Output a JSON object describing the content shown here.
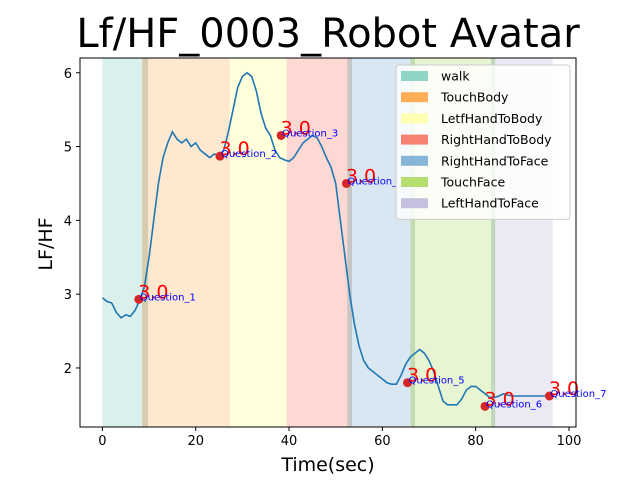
{
  "chart_data": {
    "type": "line",
    "title": "Lf/HF_0003_Robot Avatar",
    "xlabel": "Time(sec)",
    "ylabel": "LF/HF",
    "xlim": [
      -4.8,
      101.5
    ],
    "ylim": [
      1.2,
      6.2
    ],
    "xticks": [
      0,
      20,
      40,
      60,
      80,
      100
    ],
    "yticks": [
      2,
      3,
      4,
      5,
      6
    ],
    "line_color": "#1f77b4",
    "series": [
      {
        "x": [
          0,
          1,
          2,
          3,
          4,
          5,
          6,
          7,
          8,
          9,
          10,
          11,
          12,
          13,
          14,
          15,
          16,
          17,
          18,
          19,
          20,
          21,
          22,
          23,
          24,
          25,
          26,
          27,
          28,
          29,
          30,
          31,
          32,
          33,
          34,
          35,
          36,
          37,
          38,
          39,
          40,
          41,
          42,
          43,
          44,
          45,
          46,
          47,
          48,
          49,
          50,
          51,
          52,
          53,
          54,
          55,
          56,
          57,
          58,
          59,
          60,
          61,
          62,
          63,
          64,
          65,
          66,
          67,
          68,
          69,
          70,
          71,
          72,
          73,
          74,
          75,
          76,
          77,
          78,
          79,
          80,
          81,
          82,
          83,
          84,
          85,
          86,
          87,
          88,
          89,
          90,
          91,
          92,
          93,
          94,
          95,
          96
        ],
        "y": [
          2.95,
          2.9,
          2.88,
          2.75,
          2.68,
          2.72,
          2.7,
          2.78,
          2.92,
          3.1,
          3.5,
          4.0,
          4.5,
          4.85,
          5.05,
          5.2,
          5.1,
          5.05,
          5.1,
          5.0,
          5.05,
          4.95,
          4.9,
          4.85,
          4.9,
          4.87,
          4.95,
          5.2,
          5.5,
          5.8,
          5.95,
          6.0,
          5.95,
          5.75,
          5.45,
          5.25,
          5.15,
          4.95,
          4.85,
          4.82,
          4.8,
          4.85,
          4.95,
          5.05,
          5.1,
          5.15,
          5.12,
          5.0,
          4.85,
          4.72,
          4.5,
          4.0,
          3.5,
          3.0,
          2.6,
          2.3,
          2.1,
          2.0,
          1.95,
          1.9,
          1.85,
          1.8,
          1.78,
          1.78,
          1.9,
          2.05,
          2.15,
          2.2,
          2.25,
          2.2,
          2.1,
          1.95,
          1.75,
          1.55,
          1.5,
          1.5,
          1.5,
          1.58,
          1.7,
          1.75,
          1.75,
          1.7,
          1.65,
          1.6,
          1.6,
          1.62,
          1.65,
          1.63,
          1.62,
          1.62,
          1.62,
          1.62,
          1.62,
          1.62,
          1.62,
          1.62,
          1.62
        ]
      }
    ],
    "spans": [
      {
        "from": 0,
        "to": 8.5,
        "color": "#66c2b5",
        "alpha": 0.25
      },
      {
        "from": 8.5,
        "to": 9.8,
        "color": "#c4b890",
        "alpha": 0.7
      },
      {
        "from": 9.8,
        "to": 27.3,
        "color": "#fdb462",
        "alpha": 0.3
      },
      {
        "from": 27.3,
        "to": 39.5,
        "color": "#ffff99",
        "alpha": 0.35
      },
      {
        "from": 39.5,
        "to": 52.5,
        "color": "#fb8072",
        "alpha": 0.3
      },
      {
        "from": 52.5,
        "to": 53.5,
        "color": "#a0a0a0",
        "alpha": 0.6
      },
      {
        "from": 53.5,
        "to": 66.0,
        "color": "#80b1d3",
        "alpha": 0.3
      },
      {
        "from": 66.0,
        "to": 67.0,
        "color": "#a8cc90",
        "alpha": 0.7
      },
      {
        "from": 67.0,
        "to": 83.3,
        "color": "#b3de69",
        "alpha": 0.3
      },
      {
        "from": 83.3,
        "to": 84.2,
        "color": "#a8c8a0",
        "alpha": 0.7
      },
      {
        "from": 84.2,
        "to": 96.5,
        "color": "#bebada",
        "alpha": 0.3
      }
    ],
    "legend": {
      "placement": "upper-right",
      "entries": [
        {
          "label": "walk",
          "color": "#8fd4c7"
        },
        {
          "label": "TouchBody",
          "color": "#fdae57"
        },
        {
          "label": "LetfHandToBody",
          "color": "#ffffb3"
        },
        {
          "label": "RightHandToBody",
          "color": "#f88272"
        },
        {
          "label": "RightHandToFace",
          "color": "#86b5d8"
        },
        {
          "label": "TouchFace",
          "color": "#b6de6f"
        },
        {
          "label": "LeftHandToFace",
          "color": "#c5c0dd"
        }
      ]
    },
    "annotations": [
      {
        "x": 7.8,
        "y": 2.93,
        "label": "Question_1",
        "score": "3.0"
      },
      {
        "x": 25.2,
        "y": 4.87,
        "label": "Question_2",
        "score": "3.0"
      },
      {
        "x": 38.3,
        "y": 5.15,
        "label": "Question_3",
        "score": "3.0"
      },
      {
        "x": 52.3,
        "y": 4.5,
        "label": "Question_",
        "score": "3.0"
      },
      {
        "x": 65.4,
        "y": 1.8,
        "label": "Question_5",
        "score": "3.0"
      },
      {
        "x": 82.0,
        "y": 1.48,
        "label": "Question_6",
        "score": "3.0"
      },
      {
        "x": 95.8,
        "y": 1.62,
        "label": "Question_7",
        "score": "3.0"
      }
    ],
    "marker_color": "#d62728"
  }
}
